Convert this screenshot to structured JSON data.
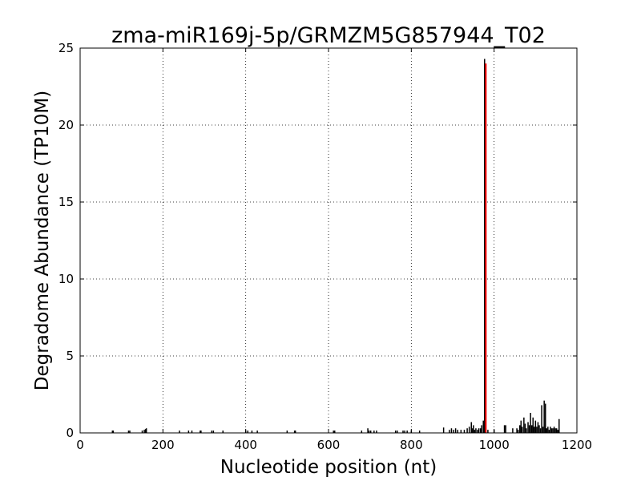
{
  "chart_data": {
    "type": "bar",
    "title": "zma-miR169j-5p/GRMZM5G857944_T02",
    "xlabel": "Nucleotide position (nt)",
    "ylabel": "Degradome Abundance (TP10M)",
    "xlim": [
      0,
      1200
    ],
    "ylim": [
      0,
      25
    ],
    "xticks": [
      "0",
      "200",
      "400",
      "600",
      "800",
      "1000",
      "1200"
    ],
    "yticks": [
      "0",
      "5",
      "10",
      "15",
      "20",
      "25"
    ],
    "grid": true,
    "colors": {
      "background": "#ffffff",
      "bars": "#000000",
      "target": "#ff0000",
      "grid": "#000000"
    },
    "series": [
      {
        "x": [
          78,
          80,
          117,
          120,
          150,
          155,
          158,
          160,
          240,
          262,
          270,
          290,
          292,
          318,
          322,
          345,
          400,
          405,
          415,
          428,
          500,
          518,
          520,
          612,
          615,
          680,
          695,
          698,
          702,
          710,
          716,
          762,
          766,
          780,
          784,
          790,
          800,
          820,
          878,
          892,
          897,
          902,
          907,
          912,
          920,
          928,
          935,
          940,
          945,
          948,
          950,
          953,
          956,
          960,
          963,
          967,
          970,
          974,
          977,
          985,
          1000,
          1025,
          1028,
          1045,
          1055,
          1058,
          1062,
          1065,
          1068,
          1072,
          1075,
          1078,
          1082,
          1085,
          1088,
          1091,
          1094,
          1097,
          1100,
          1103,
          1106,
          1109,
          1112,
          1115,
          1118,
          1121,
          1124,
          1127,
          1130,
          1133,
          1136,
          1139,
          1142,
          1145,
          1148,
          1151,
          1154,
          1157
        ],
        "y": [
          0.15,
          0.15,
          0.15,
          0.15,
          0.15,
          0.2,
          0.25,
          0.3,
          0.15,
          0.15,
          0.15,
          0.15,
          0.15,
          0.15,
          0.15,
          0.15,
          0.15,
          0.15,
          0.15,
          0.15,
          0.15,
          0.15,
          0.15,
          0.15,
          0.15,
          0.15,
          0.3,
          0.15,
          0.15,
          0.15,
          0.15,
          0.15,
          0.15,
          0.15,
          0.15,
          0.15,
          0.15,
          0.15,
          0.35,
          0.2,
          0.3,
          0.2,
          0.3,
          0.2,
          0.2,
          0.2,
          0.3,
          0.4,
          0.7,
          0.3,
          0.5,
          0.2,
          0.3,
          0.2,
          0.3,
          0.3,
          0.5,
          0.8,
          24.3,
          0.2,
          0.2,
          0.5,
          0.5,
          0.3,
          0.3,
          0.2,
          0.5,
          0.8,
          0.4,
          1.0,
          0.6,
          0.3,
          0.7,
          0.5,
          1.3,
          0.5,
          1.0,
          0.4,
          0.8,
          0.4,
          0.7,
          0.5,
          0.3,
          1.8,
          0.4,
          2.1,
          1.9,
          0.3,
          0.4,
          0.2,
          0.4,
          0.3,
          0.3,
          0.4,
          0.3,
          0.3,
          0.2,
          0.9
        ]
      }
    ],
    "target": {
      "x": 980,
      "y": 24
    }
  }
}
